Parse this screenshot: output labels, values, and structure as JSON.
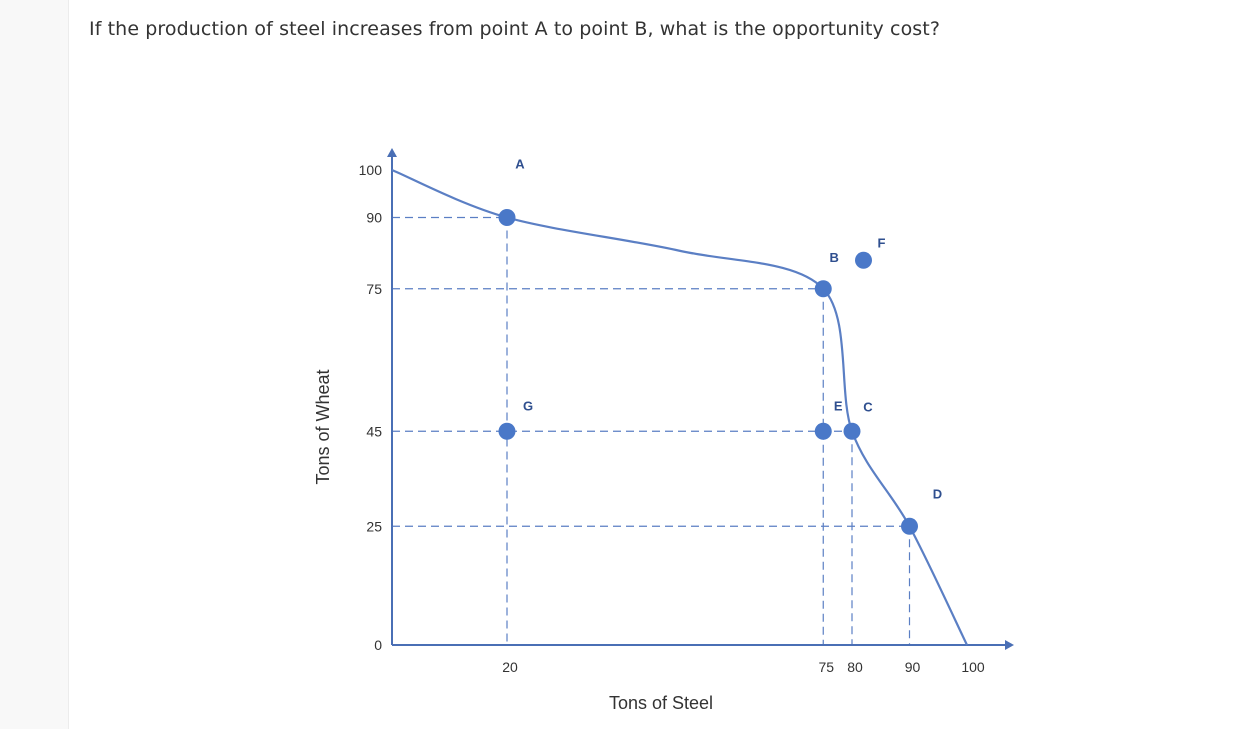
{
  "question": {
    "text": "If the production of steel increases from point A to point B, what is the opportunity cost?"
  },
  "chart_data": {
    "type": "line",
    "title": "",
    "xlabel": "Tons of Steel",
    "ylabel": "Tons of Wheat",
    "xlim": [
      0,
      100
    ],
    "ylim": [
      0,
      100
    ],
    "x_ticks": [
      20,
      75,
      80,
      90,
      100
    ],
    "y_ticks": [
      0,
      25,
      45,
      75,
      90,
      100
    ],
    "grid": false,
    "colors": {
      "curve": "#5b7fc4",
      "points": "#4a78c8",
      "axis": "#4a6fb5",
      "guides": "#5b7fc4",
      "text": "#333333"
    },
    "series": [
      {
        "values": [
          {
            "x": 0,
            "y": 100
          },
          {
            "x": 20,
            "y": 90
          },
          {
            "x": 50,
            "y": 83
          },
          {
            "x": 75,
            "y": 75
          },
          {
            "x": 80,
            "y": 45
          },
          {
            "x": 90,
            "y": 25
          },
          {
            "x": 100,
            "y": 0
          }
        ]
      }
    ],
    "points": [
      {
        "label": "A",
        "x": 20,
        "y": 90
      },
      {
        "label": "B",
        "x": 75,
        "y": 75
      },
      {
        "label": "C",
        "x": 80,
        "y": 45
      },
      {
        "label": "D",
        "x": 90,
        "y": 25
      },
      {
        "label": "E",
        "x": 75,
        "y": 45
      },
      {
        "label": "F",
        "x": 82,
        "y": 81
      },
      {
        "label": "G",
        "x": 20,
        "y": 45
      }
    ],
    "guide_lines": [
      {
        "from": {
          "x": 0,
          "y": 90
        },
        "to": {
          "x": 20,
          "y": 90
        }
      },
      {
        "from": {
          "x": 0,
          "y": 75
        },
        "to": {
          "x": 75,
          "y": 75
        }
      },
      {
        "from": {
          "x": 0,
          "y": 45
        },
        "to": {
          "x": 80,
          "y": 45
        }
      },
      {
        "from": {
          "x": 0,
          "y": 25
        },
        "to": {
          "x": 90,
          "y": 25
        }
      },
      {
        "from": {
          "x": 20,
          "y": 90
        },
        "to": {
          "x": 20,
          "y": 0
        }
      },
      {
        "from": {
          "x": 75,
          "y": 75
        },
        "to": {
          "x": 75,
          "y": 0
        }
      },
      {
        "from": {
          "x": 80,
          "y": 45
        },
        "to": {
          "x": 80,
          "y": 0
        }
      },
      {
        "from": {
          "x": 90,
          "y": 25
        },
        "to": {
          "x": 90,
          "y": 0
        }
      }
    ]
  }
}
